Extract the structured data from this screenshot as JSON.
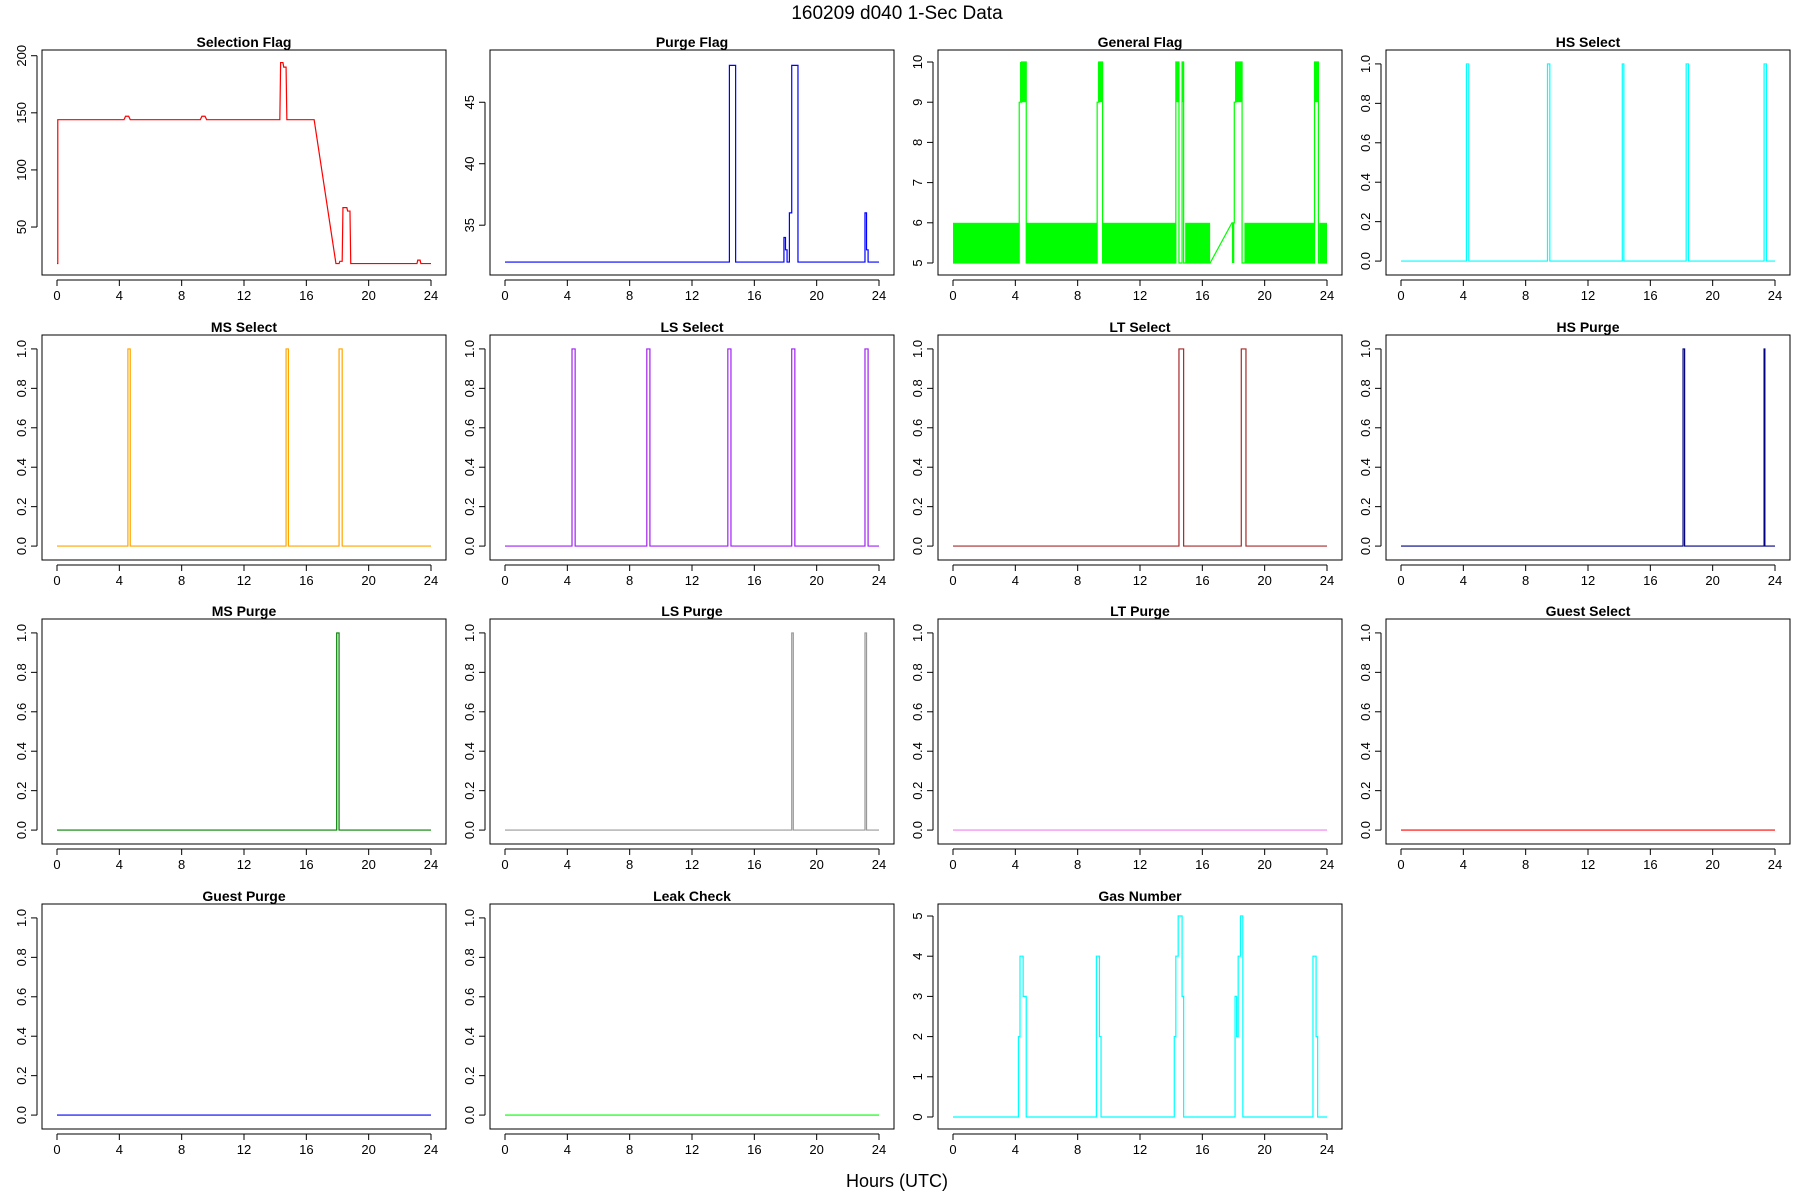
{
  "figure": {
    "title": "160209    d040    1-Sec Data",
    "xlabel": "Hours (UTC)"
  },
  "chart_data": [
    {
      "type": "line",
      "title": "Selection Flag",
      "color": "#ff0000",
      "fill": false,
      "xlim": [
        0,
        24
      ],
      "xticks": [
        0,
        4,
        8,
        12,
        16,
        20,
        24
      ],
      "ylim": [
        15,
        198
      ],
      "yticks": [
        50,
        100,
        150,
        200
      ],
      "points": [
        [
          0,
          18
        ],
        [
          0.05,
          18
        ],
        [
          0.05,
          144
        ],
        [
          4.3,
          144
        ],
        [
          4.4,
          147
        ],
        [
          4.6,
          147
        ],
        [
          4.7,
          144
        ],
        [
          9.2,
          144
        ],
        [
          9.3,
          147
        ],
        [
          9.5,
          147
        ],
        [
          9.6,
          144
        ],
        [
          14.3,
          144
        ],
        [
          14.35,
          194
        ],
        [
          14.5,
          194
        ],
        [
          14.55,
          190
        ],
        [
          14.7,
          190
        ],
        [
          14.75,
          144
        ],
        [
          16.5,
          144
        ],
        [
          17.9,
          18
        ],
        [
          18.1,
          18
        ],
        [
          18.15,
          20
        ],
        [
          18.3,
          20
        ],
        [
          18.35,
          67
        ],
        [
          18.6,
          67
        ],
        [
          18.65,
          64
        ],
        [
          18.8,
          64
        ],
        [
          18.85,
          18
        ],
        [
          23.1,
          18
        ],
        [
          23.15,
          21
        ],
        [
          23.3,
          21
        ],
        [
          23.35,
          18
        ],
        [
          24,
          18
        ]
      ]
    },
    {
      "type": "line",
      "title": "Purge Flag",
      "color": "#0000ff",
      "fill": false,
      "xlim": [
        0,
        24
      ],
      "xticks": [
        0,
        4,
        8,
        12,
        16,
        20,
        24
      ],
      "ylim": [
        31.6,
        48.6
      ],
      "yticks": [
        35,
        40,
        45
      ],
      "points": [
        [
          0,
          32
        ],
        [
          14.4,
          32
        ],
        [
          14.4,
          48
        ],
        [
          14.8,
          48
        ],
        [
          14.8,
          32
        ],
        [
          17.9,
          32
        ],
        [
          17.9,
          34
        ],
        [
          18,
          34
        ],
        [
          18,
          33
        ],
        [
          18.1,
          33
        ],
        [
          18.1,
          32
        ],
        [
          18.25,
          32
        ],
        [
          18.25,
          36
        ],
        [
          18.4,
          36
        ],
        [
          18.4,
          48
        ],
        [
          18.8,
          48
        ],
        [
          18.8,
          32
        ],
        [
          23.1,
          32
        ],
        [
          23.1,
          36
        ],
        [
          23.2,
          36
        ],
        [
          23.2,
          33
        ],
        [
          23.3,
          33
        ],
        [
          23.3,
          32
        ],
        [
          24,
          32
        ]
      ]
    },
    {
      "type": "line",
      "title": "General Flag",
      "color": "#00ff00",
      "fill": true,
      "fill_base": 5,
      "fill_top": 6,
      "fill_ranges": [
        [
          0,
          4.25
        ],
        [
          4.7,
          9.25
        ],
        [
          9.6,
          14.3
        ],
        [
          14.9,
          16.5
        ],
        [
          17.9,
          18.05
        ],
        [
          18.7,
          23.2
        ],
        [
          23.5,
          24
        ]
      ],
      "spike_ranges": [
        [
          4.3,
          4.7
        ],
        [
          9.3,
          9.6
        ],
        [
          14.3,
          14.5
        ],
        [
          14.7,
          14.8
        ],
        [
          18.1,
          18.55
        ],
        [
          23.2,
          23.45
        ]
      ],
      "xlim": [
        0,
        24
      ],
      "xticks": [
        0,
        4,
        8,
        12,
        16,
        20,
        24
      ],
      "ylim": [
        4.9,
        10.1
      ],
      "yticks": [
        5,
        6,
        7,
        8,
        9,
        10
      ],
      "points": [
        [
          0,
          5
        ],
        [
          4.25,
          5
        ],
        [
          4.25,
          9
        ],
        [
          4.4,
          9
        ],
        [
          4.4,
          10
        ],
        [
          4.7,
          10
        ],
        [
          4.7,
          5
        ],
        [
          9.25,
          5
        ],
        [
          9.25,
          9
        ],
        [
          9.35,
          9
        ],
        [
          9.35,
          10
        ],
        [
          9.6,
          10
        ],
        [
          9.6,
          5
        ],
        [
          14.3,
          5
        ],
        [
          14.3,
          10
        ],
        [
          14.5,
          10
        ],
        [
          14.5,
          5
        ],
        [
          14.7,
          5
        ],
        [
          14.7,
          10
        ],
        [
          14.8,
          10
        ],
        [
          14.8,
          5
        ],
        [
          16.5,
          5
        ],
        [
          17.9,
          6
        ],
        [
          18.05,
          6
        ],
        [
          18.05,
          9
        ],
        [
          18.15,
          9
        ],
        [
          18.15,
          10
        ],
        [
          18.55,
          10
        ],
        [
          18.55,
          5
        ],
        [
          23.2,
          5
        ],
        [
          23.2,
          10
        ],
        [
          23.45,
          10
        ],
        [
          23.45,
          5
        ],
        [
          24,
          5
        ]
      ]
    },
    {
      "type": "line",
      "title": "HS Select",
      "color": "#00ffff",
      "fill": false,
      "xlim": [
        0,
        24
      ],
      "xticks": [
        0,
        4,
        8,
        12,
        16,
        20,
        24
      ],
      "ylim": [
        -0.03,
        1.03
      ],
      "yticks": [
        0.0,
        0.2,
        0.4,
        0.6,
        0.8,
        1.0
      ],
      "points": [
        [
          0,
          0
        ],
        [
          4.2,
          0
        ],
        [
          4.2,
          1
        ],
        [
          4.35,
          1
        ],
        [
          4.35,
          0
        ],
        [
          9.4,
          0
        ],
        [
          9.4,
          1
        ],
        [
          9.55,
          1
        ],
        [
          9.55,
          0
        ],
        [
          14.2,
          0
        ],
        [
          14.2,
          1
        ],
        [
          14.3,
          1
        ],
        [
          14.3,
          0
        ],
        [
          18.3,
          0
        ],
        [
          18.3,
          1
        ],
        [
          18.45,
          1
        ],
        [
          18.45,
          0
        ],
        [
          23.3,
          0
        ],
        [
          23.3,
          1
        ],
        [
          23.45,
          1
        ],
        [
          23.45,
          0
        ],
        [
          24,
          0
        ]
      ]
    },
    {
      "type": "line",
      "title": "MS Select",
      "color": "#ffa500",
      "fill": false,
      "xlim": [
        0,
        24
      ],
      "xticks": [
        0,
        4,
        8,
        12,
        16,
        20,
        24
      ],
      "ylim": [
        -0.03,
        1.03
      ],
      "yticks": [
        0.0,
        0.2,
        0.4,
        0.6,
        0.8,
        1.0
      ],
      "points": [
        [
          0,
          0
        ],
        [
          4.55,
          0
        ],
        [
          4.55,
          1
        ],
        [
          4.7,
          1
        ],
        [
          4.7,
          0
        ],
        [
          14.7,
          0
        ],
        [
          14.7,
          1
        ],
        [
          14.85,
          1
        ],
        [
          14.85,
          0
        ],
        [
          18.1,
          0
        ],
        [
          18.1,
          1
        ],
        [
          18.3,
          1
        ],
        [
          18.3,
          0
        ],
        [
          24,
          0
        ]
      ]
    },
    {
      "type": "line",
      "title": "LS Select",
      "color": "#a020f0",
      "fill": false,
      "xlim": [
        0,
        24
      ],
      "xticks": [
        0,
        4,
        8,
        12,
        16,
        20,
        24
      ],
      "ylim": [
        -0.03,
        1.03
      ],
      "yticks": [
        0.0,
        0.2,
        0.4,
        0.6,
        0.8,
        1.0
      ],
      "points": [
        [
          0,
          0
        ],
        [
          4.3,
          0
        ],
        [
          4.3,
          1
        ],
        [
          4.5,
          1
        ],
        [
          4.5,
          0
        ],
        [
          9.1,
          0
        ],
        [
          9.1,
          1
        ],
        [
          9.3,
          1
        ],
        [
          9.3,
          0
        ],
        [
          14.3,
          0
        ],
        [
          14.3,
          1
        ],
        [
          14.5,
          1
        ],
        [
          14.5,
          0
        ],
        [
          18.4,
          0
        ],
        [
          18.4,
          1
        ],
        [
          18.6,
          1
        ],
        [
          18.6,
          0
        ],
        [
          23.1,
          0
        ],
        [
          23.1,
          1
        ],
        [
          23.3,
          1
        ],
        [
          23.3,
          0
        ],
        [
          24,
          0
        ]
      ]
    },
    {
      "type": "line",
      "title": "LT Select",
      "color": "#a52a2a",
      "fill": false,
      "xlim": [
        0,
        24
      ],
      "xticks": [
        0,
        4,
        8,
        12,
        16,
        20,
        24
      ],
      "ylim": [
        -0.03,
        1.03
      ],
      "yticks": [
        0.0,
        0.2,
        0.4,
        0.6,
        0.8,
        1.0
      ],
      "points": [
        [
          0,
          0
        ],
        [
          14.5,
          0
        ],
        [
          14.5,
          1
        ],
        [
          14.8,
          1
        ],
        [
          14.8,
          0
        ],
        [
          18.5,
          0
        ],
        [
          18.5,
          1
        ],
        [
          18.8,
          1
        ],
        [
          18.8,
          0
        ],
        [
          24,
          0
        ]
      ]
    },
    {
      "type": "line",
      "title": "HS Purge",
      "color": "#000080",
      "fill": false,
      "xlim": [
        0,
        24
      ],
      "xticks": [
        0,
        4,
        8,
        12,
        16,
        20,
        24
      ],
      "ylim": [
        -0.03,
        1.03
      ],
      "yticks": [
        0.0,
        0.2,
        0.4,
        0.6,
        0.8,
        1.0
      ],
      "points": [
        [
          0,
          0
        ],
        [
          18.1,
          0
        ],
        [
          18.1,
          1
        ],
        [
          18.2,
          1
        ],
        [
          18.2,
          0
        ],
        [
          23.3,
          0
        ],
        [
          23.3,
          1
        ],
        [
          23.35,
          1
        ],
        [
          23.35,
          0
        ],
        [
          24,
          0
        ]
      ]
    },
    {
      "type": "line",
      "title": "MS Purge",
      "color": "#008000",
      "fill": false,
      "xlim": [
        0,
        24
      ],
      "xticks": [
        0,
        4,
        8,
        12,
        16,
        20,
        24
      ],
      "ylim": [
        -0.03,
        1.03
      ],
      "yticks": [
        0.0,
        0.2,
        0.4,
        0.6,
        0.8,
        1.0
      ],
      "points": [
        [
          0,
          0
        ],
        [
          17.95,
          0
        ],
        [
          17.95,
          1
        ],
        [
          18.1,
          1
        ],
        [
          18.1,
          0
        ],
        [
          24,
          0
        ]
      ]
    },
    {
      "type": "line",
      "title": "LS Purge",
      "color": "#999999",
      "fill": false,
      "xlim": [
        0,
        24
      ],
      "xticks": [
        0,
        4,
        8,
        12,
        16,
        20,
        24
      ],
      "ylim": [
        -0.03,
        1.03
      ],
      "yticks": [
        0.0,
        0.2,
        0.4,
        0.6,
        0.8,
        1.0
      ],
      "points": [
        [
          0,
          0
        ],
        [
          18.4,
          0
        ],
        [
          18.4,
          1
        ],
        [
          18.5,
          1
        ],
        [
          18.5,
          0
        ],
        [
          23.1,
          0
        ],
        [
          23.1,
          1
        ],
        [
          23.2,
          1
        ],
        [
          23.2,
          0
        ],
        [
          24,
          0
        ]
      ]
    },
    {
      "type": "line",
      "title": "LT Purge",
      "color": "#ee82ee",
      "fill": false,
      "xlim": [
        0,
        24
      ],
      "xticks": [
        0,
        4,
        8,
        12,
        16,
        20,
        24
      ],
      "ylim": [
        -0.03,
        1.03
      ],
      "yticks": [
        0.0,
        0.2,
        0.4,
        0.6,
        0.8,
        1.0
      ],
      "points": [
        [
          0,
          0
        ],
        [
          24,
          0
        ]
      ]
    },
    {
      "type": "line",
      "title": "Guest Select",
      "color": "#ff0000",
      "fill": false,
      "xlim": [
        0,
        24
      ],
      "xticks": [
        0,
        4,
        8,
        12,
        16,
        20,
        24
      ],
      "ylim": [
        -0.03,
        1.03
      ],
      "yticks": [
        0.0,
        0.2,
        0.4,
        0.6,
        0.8,
        1.0
      ],
      "points": [
        [
          0,
          0
        ],
        [
          24,
          0
        ]
      ]
    },
    {
      "type": "line",
      "title": "Guest Purge",
      "color": "#0000ff",
      "fill": false,
      "xlim": [
        0,
        24
      ],
      "xticks": [
        0,
        4,
        8,
        12,
        16,
        20,
        24
      ],
      "ylim": [
        -0.03,
        1.03
      ],
      "yticks": [
        0.0,
        0.2,
        0.4,
        0.6,
        0.8,
        1.0
      ],
      "points": [
        [
          0,
          0
        ],
        [
          24,
          0
        ]
      ]
    },
    {
      "type": "line",
      "title": "Leak Check",
      "color": "#00ff00",
      "fill": false,
      "xlim": [
        0,
        24
      ],
      "xticks": [
        0,
        4,
        8,
        12,
        16,
        20,
        24
      ],
      "ylim": [
        -0.03,
        1.03
      ],
      "yticks": [
        0.0,
        0.2,
        0.4,
        0.6,
        0.8,
        1.0
      ],
      "points": [
        [
          0,
          0
        ],
        [
          24,
          0
        ]
      ]
    },
    {
      "type": "line",
      "title": "Gas Number",
      "color": "#00ffff",
      "fill": false,
      "xlim": [
        0,
        24
      ],
      "xticks": [
        0,
        4,
        8,
        12,
        16,
        20,
        24
      ],
      "ylim": [
        -0.1,
        5.1
      ],
      "yticks": [
        0,
        1,
        2,
        3,
        4,
        5
      ],
      "points": [
        [
          0,
          0
        ],
        [
          4.2,
          0
        ],
        [
          4.2,
          2
        ],
        [
          4.3,
          2
        ],
        [
          4.3,
          4
        ],
        [
          4.5,
          4
        ],
        [
          4.5,
          3
        ],
        [
          4.7,
          3
        ],
        [
          4.7,
          0
        ],
        [
          9.2,
          0
        ],
        [
          9.2,
          4
        ],
        [
          9.4,
          4
        ],
        [
          9.4,
          2
        ],
        [
          9.5,
          2
        ],
        [
          9.5,
          0
        ],
        [
          14.2,
          0
        ],
        [
          14.2,
          2
        ],
        [
          14.3,
          2
        ],
        [
          14.3,
          4
        ],
        [
          14.45,
          4
        ],
        [
          14.45,
          5
        ],
        [
          14.7,
          5
        ],
        [
          14.7,
          3
        ],
        [
          14.8,
          3
        ],
        [
          14.8,
          0
        ],
        [
          18.1,
          0
        ],
        [
          18.1,
          3
        ],
        [
          18.2,
          3
        ],
        [
          18.2,
          2
        ],
        [
          18.3,
          2
        ],
        [
          18.3,
          4
        ],
        [
          18.45,
          4
        ],
        [
          18.45,
          5
        ],
        [
          18.6,
          5
        ],
        [
          18.6,
          0
        ],
        [
          23.1,
          0
        ],
        [
          23.1,
          4
        ],
        [
          23.3,
          4
        ],
        [
          23.3,
          2
        ],
        [
          23.4,
          2
        ],
        [
          23.4,
          0
        ],
        [
          24,
          0
        ]
      ]
    }
  ]
}
